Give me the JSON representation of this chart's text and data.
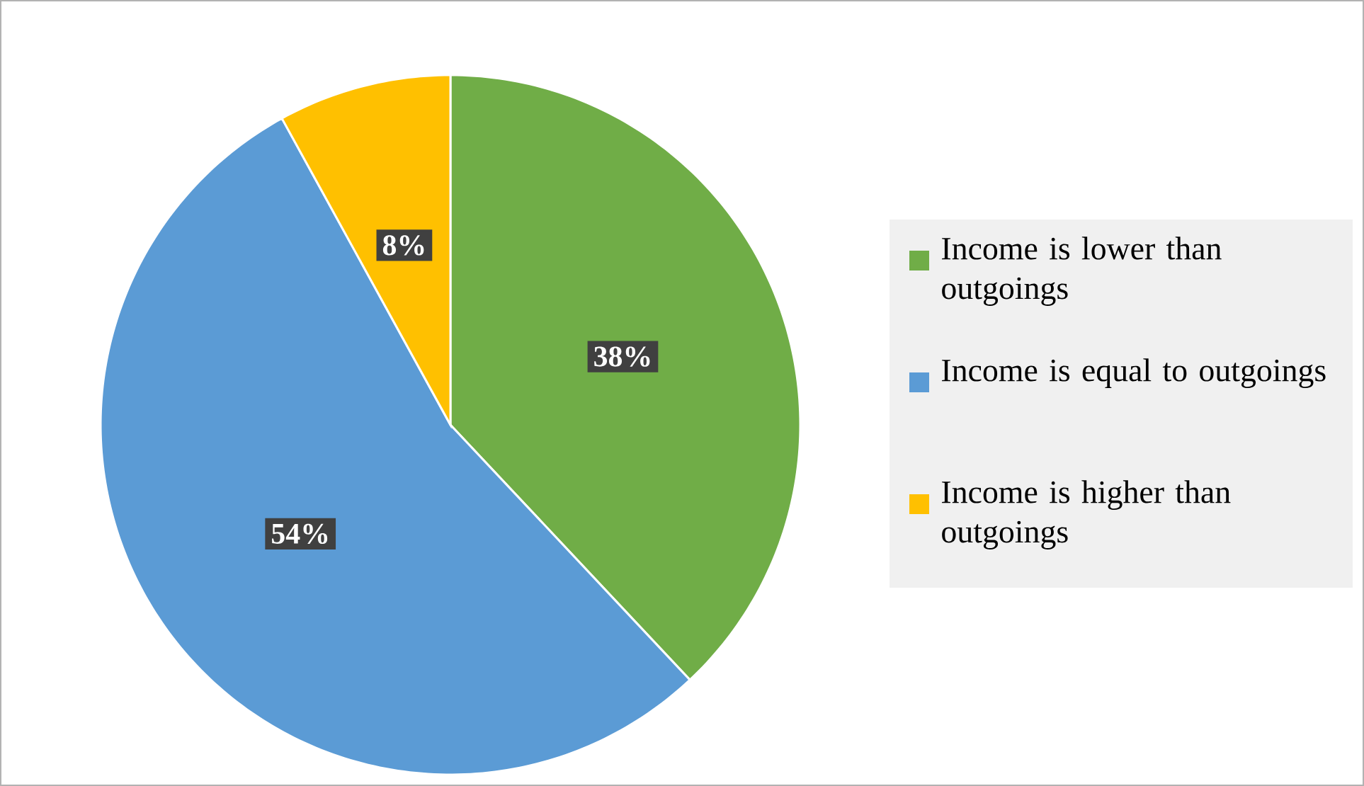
{
  "chart_data": {
    "type": "pie",
    "categories": [
      "Income is lower than outgoings",
      "Income is equal to outgoings",
      "Income is higher than outgoings"
    ],
    "values": [
      38,
      54,
      8
    ],
    "colors": [
      "#70ad47",
      "#5b9bd5",
      "#ffc000"
    ],
    "value_labels": [
      "38%",
      "54%",
      "8%"
    ],
    "legend": "right"
  }
}
